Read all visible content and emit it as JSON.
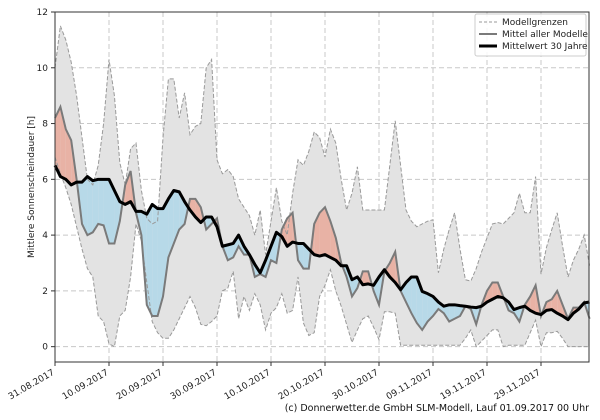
{
  "chart_data": {
    "type": "area",
    "title": "",
    "xlabel": "",
    "ylabel": "Mittlere Sonnenscheindauer [h]",
    "ylim": [
      -0.55,
      12
    ],
    "yticks": [
      "0",
      "2",
      "4",
      "6",
      "8",
      "10",
      "12"
    ],
    "xticks": [
      "31.08.2017",
      "10.09.2017",
      "20.09.2017",
      "30.09.2017",
      "10.10.2017",
      "20.10.2017",
      "30.10.2017",
      "09.11.2017",
      "19.11.2017",
      "29.11.2017"
    ],
    "grid": true,
    "legend_position": "top-right",
    "legend": [
      "Modellgrenzen",
      "Mittel aller Modelle",
      "Mittelwert 30 Jahre"
    ],
    "colors": {
      "band": "#e3e3e3",
      "bounds": "#999999",
      "model_mean": "#7a7a7a",
      "climate_mean": "#000000",
      "above": "#e8b2a5",
      "below": "#b7d9e8"
    },
    "x": [
      "31.08.2017",
      "01.09.2017",
      "02.09.2017",
      "03.09.2017",
      "04.09.2017",
      "05.09.2017",
      "06.09.2017",
      "07.09.2017",
      "08.09.2017",
      "09.09.2017",
      "10.09.2017",
      "11.09.2017",
      "12.09.2017",
      "13.09.2017",
      "14.09.2017",
      "15.09.2017",
      "16.09.2017",
      "17.09.2017",
      "18.09.2017",
      "19.09.2017",
      "20.09.2017",
      "21.09.2017",
      "22.09.2017",
      "23.09.2017",
      "24.09.2017",
      "25.09.2017",
      "26.09.2017",
      "27.09.2017",
      "28.09.2017",
      "29.09.2017",
      "30.09.2017",
      "01.10.2017",
      "02.10.2017",
      "03.10.2017",
      "04.10.2017",
      "05.10.2017",
      "06.10.2017",
      "07.10.2017",
      "08.10.2017",
      "09.10.2017",
      "10.10.2017",
      "11.10.2017",
      "12.10.2017",
      "13.10.2017",
      "14.10.2017",
      "15.10.2017",
      "16.10.2017",
      "17.10.2017",
      "18.10.2017",
      "19.10.2017",
      "20.10.2017",
      "21.10.2017",
      "22.10.2017",
      "23.10.2017",
      "24.10.2017",
      "25.10.2017",
      "26.10.2017",
      "27.10.2017",
      "28.10.2017",
      "29.10.2017",
      "30.10.2017",
      "31.10.2017",
      "01.11.2017",
      "02.11.2017",
      "03.11.2017",
      "04.11.2017",
      "05.11.2017",
      "06.11.2017",
      "07.11.2017",
      "08.11.2017",
      "09.11.2017",
      "10.11.2017",
      "11.11.2017",
      "12.11.2017",
      "13.11.2017",
      "14.11.2017",
      "15.11.2017",
      "16.11.2017",
      "17.11.2017",
      "18.11.2017",
      "19.11.2017",
      "20.11.2017",
      "21.11.2017",
      "22.11.2017",
      "23.11.2017",
      "24.11.2017",
      "25.11.2017",
      "26.11.2017",
      "27.11.2017",
      "28.11.2017",
      "29.11.2017",
      "30.11.2017",
      "01.12.2017",
      "02.12.2017",
      "03.12.2017",
      "04.12.2017",
      "05.12.2017",
      "06.12.2017",
      "07.12.2017",
      "08.12.2017"
    ],
    "series": [
      {
        "name": "Modellgrenzen (oben)",
        "values": [
          10.0,
          11.5,
          11.0,
          10.2,
          9.0,
          7.5,
          6.0,
          5.8,
          6.5,
          8.0,
          10.3,
          9.0,
          6.6,
          5.8,
          7.1,
          7.3,
          5.6,
          4.6,
          4.4,
          4.5,
          7.5,
          9.6,
          9.6,
          8.2,
          9.1,
          7.6,
          7.9,
          8.0,
          10.0,
          10.3,
          6.7,
          6.2,
          6.35,
          6.1,
          5.3,
          5.0,
          4.7,
          4.0,
          4.9,
          3.3,
          4.5,
          5.7,
          4.5,
          4.0,
          5.5,
          6.7,
          6.5,
          7.0,
          7.7,
          7.5,
          6.8,
          7.8,
          7.3,
          6.0,
          4.9,
          5.5,
          6.45,
          4.9,
          4.9,
          4.9,
          4.9,
          4.9,
          6.5,
          8.1,
          6.5,
          4.9,
          4.5,
          4.3,
          4.4,
          4.5,
          4.55,
          2.65,
          3.5,
          4.2,
          4.8,
          3.5,
          2.4,
          2.35,
          2.8,
          3.4,
          3.9,
          4.4,
          4.45,
          4.4,
          4.6,
          4.8,
          5.5,
          4.8,
          4.8,
          6.1,
          2.6,
          3.55,
          4.2,
          4.8,
          3.6,
          2.5,
          3.1,
          3.5,
          4.0,
          2.9
        ]
      },
      {
        "name": "Modellgrenzen (unten)",
        "values": [
          6.8,
          6.2,
          5.7,
          5.1,
          4.3,
          3.5,
          2.8,
          2.5,
          1.1,
          0.9,
          0.1,
          0.0,
          1.1,
          1.3,
          2.5,
          4.4,
          3.8,
          2.3,
          0.9,
          0.5,
          0.3,
          0.3,
          0.6,
          1.0,
          1.4,
          1.8,
          1.4,
          0.8,
          0.75,
          0.9,
          1.1,
          2.0,
          2.1,
          2.7,
          1.0,
          1.8,
          1.3,
          1.9,
          1.5,
          0.6,
          1.2,
          1.4,
          1.9,
          1.2,
          1.3,
          2.5,
          0.85,
          0.4,
          0.5,
          1.8,
          2.2,
          2.76,
          2.0,
          1.45,
          0.8,
          0.15,
          0.6,
          1.0,
          1.1,
          0.7,
          0.25,
          1.25,
          1.25,
          1.2,
          0.05,
          0.05,
          0.05,
          0.05,
          0.05,
          0.05,
          0.05,
          0.05,
          0.05,
          0.05,
          0.05,
          0.05,
          0.3,
          0.6,
          0.0,
          0.2,
          0.4,
          0.6,
          0.6,
          0.0,
          0.05,
          0.05,
          0.05,
          0.05,
          0.5,
          0.95,
          0.0,
          0.5,
          0.5,
          0.55,
          0.3,
          0.0,
          0.0,
          0.0,
          0.0,
          0.0
        ]
      },
      {
        "name": "Mittel aller Modelle",
        "values": [
          8.2,
          8.6,
          7.8,
          7.4,
          6.0,
          4.4,
          4.0,
          4.1,
          4.4,
          4.35,
          3.7,
          3.7,
          4.5,
          5.8,
          6.3,
          4.8,
          4.0,
          1.5,
          1.1,
          1.1,
          1.8,
          3.2,
          3.7,
          4.2,
          4.4,
          5.3,
          5.3,
          5.0,
          4.2,
          4.4,
          4.6,
          3.6,
          3.1,
          3.2,
          3.6,
          3.3,
          3.3,
          2.5,
          2.6,
          2.5,
          3.1,
          3.0,
          4.2,
          4.6,
          4.8,
          3.1,
          2.8,
          2.8,
          4.4,
          4.8,
          5.0,
          4.5,
          3.9,
          3.0,
          2.5,
          1.8,
          2.1,
          2.7,
          2.7,
          2.0,
          1.5,
          2.7,
          3.0,
          3.4,
          2.0,
          1.6,
          1.2,
          0.85,
          0.6,
          0.9,
          1.1,
          1.35,
          1.2,
          0.9,
          1.0,
          1.1,
          1.45,
          1.35,
          0.8,
          1.5,
          2.0,
          2.3,
          2.3,
          1.8,
          1.3,
          1.2,
          0.9,
          1.5,
          1.8,
          2.2,
          1.1,
          1.6,
          1.7,
          2.0,
          1.5,
          1.0,
          1.4,
          1.4,
          1.6,
          1.0
        ]
      },
      {
        "name": "Mittelwert 30 Jahre",
        "values": [
          6.5,
          6.1,
          6.0,
          5.8,
          5.9,
          5.9,
          6.1,
          5.95,
          6.0,
          6.0,
          6.0,
          5.6,
          5.2,
          5.1,
          5.2,
          4.85,
          4.85,
          4.75,
          5.1,
          4.95,
          4.95,
          5.3,
          5.6,
          5.55,
          5.2,
          4.9,
          4.65,
          4.45,
          4.65,
          4.65,
          4.3,
          3.6,
          3.65,
          3.7,
          4.0,
          3.6,
          3.3,
          2.95,
          2.65,
          3.1,
          3.6,
          4.1,
          3.95,
          3.6,
          3.75,
          3.7,
          3.7,
          3.5,
          3.3,
          3.25,
          3.3,
          3.2,
          3.1,
          2.9,
          2.9,
          2.4,
          2.5,
          2.22,
          2.25,
          2.2,
          2.5,
          2.76,
          2.5,
          2.3,
          2.04,
          2.3,
          2.5,
          2.5,
          1.98,
          1.9,
          1.8,
          1.6,
          1.45,
          1.5,
          1.5,
          1.47,
          1.45,
          1.42,
          1.4,
          1.45,
          1.6,
          1.7,
          1.8,
          1.75,
          1.6,
          1.33,
          1.4,
          1.45,
          1.3,
          1.2,
          1.15,
          1.3,
          1.33,
          1.2,
          1.1,
          0.97,
          1.2,
          1.35,
          1.57,
          1.6
        ]
      }
    ]
  },
  "footer": "(c) Donnerwetter.de GmbH SLM-Modell, Lauf 01.09.2017 00 Uhr"
}
